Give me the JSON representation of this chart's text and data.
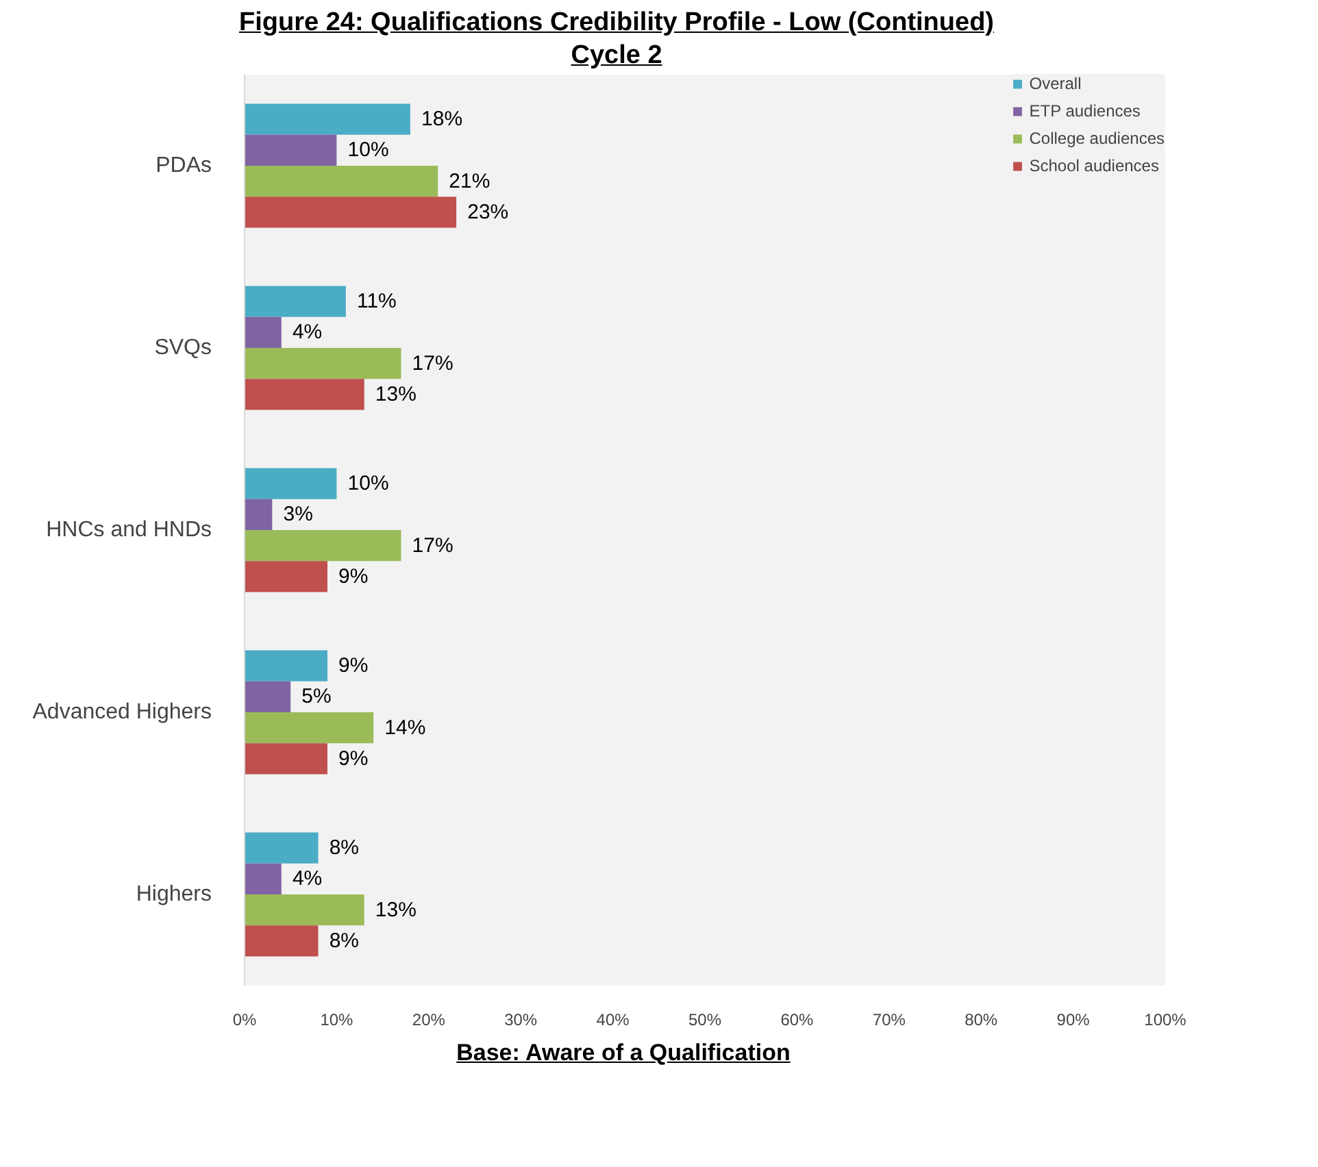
{
  "chart_data": {
    "type": "bar",
    "orientation": "horizontal",
    "title": "Figure 24:  Qualifications Credibility Profile - Low (Continued)",
    "subtitle": "Cycle 2",
    "categories": [
      "PDAs",
      "SVQs",
      "HNCs and HNDs",
      "Advanced Highers",
      "Highers"
    ],
    "series": [
      {
        "name": "Overall",
        "color": "#4bacc6",
        "values": [
          18,
          11,
          10,
          9,
          8
        ],
        "value_labels": [
          "18%",
          "11%",
          "10%",
          "9%",
          "8%"
        ]
      },
      {
        "name": "ETP audiences",
        "color": "#8064a2",
        "values": [
          10,
          4,
          3,
          5,
          4
        ],
        "value_labels": [
          "10%",
          "4%",
          "3%",
          "5%",
          "4%"
        ]
      },
      {
        "name": "College audiences",
        "color": "#9bbb59",
        "values": [
          21,
          17,
          17,
          14,
          13
        ],
        "value_labels": [
          "21%",
          "17%",
          "17%",
          "14%",
          "13%"
        ]
      },
      {
        "name": "School audiences",
        "color": "#c0504d",
        "values": [
          23,
          13,
          9,
          9,
          8
        ],
        "value_labels": [
          "23%",
          "13%",
          "9%",
          "9%",
          "8%"
        ]
      }
    ],
    "xlim": [
      0,
      100
    ],
    "xticks": [
      {
        "value": 0,
        "label": "0%"
      },
      {
        "value": 10,
        "label": "10%"
      },
      {
        "value": 20,
        "label": "20%"
      },
      {
        "value": 30,
        "label": "30%"
      },
      {
        "value": 40,
        "label": "40%"
      },
      {
        "value": 50,
        "label": "50%"
      },
      {
        "value": 60,
        "label": "60%"
      },
      {
        "value": 70,
        "label": "70%"
      },
      {
        "value": 80,
        "label": "80%"
      },
      {
        "value": 90,
        "label": "90%"
      },
      {
        "value": 100,
        "label": "100%"
      }
    ],
    "grid": false,
    "legend": "top right",
    "annotations": [
      "Base:  Aware of a Qualification"
    ]
  }
}
